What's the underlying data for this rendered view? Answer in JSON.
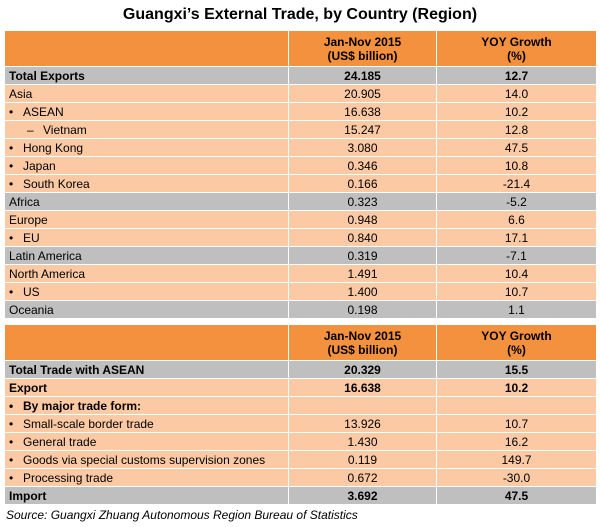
{
  "title": "Guangxi’s External Trade, by Country (Region)",
  "table1": {
    "headers": [
      "",
      "Jan-Nov 2015\n(US$ billion)",
      "YOY Growth\n(%)"
    ],
    "header_col2_l1": "Jan-Nov 2015",
    "header_col2_l2": "(US$ billion)",
    "header_col3_l1": "YOY Growth",
    "header_col3_l2": "(%)",
    "rows": [
      {
        "label": "Total Exports",
        "value": "24.185",
        "growth": "12.7"
      },
      {
        "label": "Asia",
        "value": "20.905",
        "growth": "14.0"
      },
      {
        "label": "ASEAN",
        "value": "16.638",
        "growth": "10.2"
      },
      {
        "label": "Vietnam",
        "value": "15.247",
        "growth": "12.8"
      },
      {
        "label": "Hong Kong",
        "value": "3.080",
        "growth": "47.5"
      },
      {
        "label": "Japan",
        "value": "0.346",
        "growth": "10.8"
      },
      {
        "label": "South Korea",
        "value": "0.166",
        "growth": "-21.4"
      },
      {
        "label": "Africa",
        "value": "0.323",
        "growth": "-5.2"
      },
      {
        "label": "Europe",
        "value": "0.948",
        "growth": "6.6"
      },
      {
        "label": "EU",
        "value": "0.840",
        "growth": "17.1"
      },
      {
        "label": "Latin America",
        "value": "0.319",
        "growth": "-7.1"
      },
      {
        "label": "North America",
        "value": "1.491",
        "growth": "10.4"
      },
      {
        "label": "US",
        "value": "1.400",
        "growth": "10.7"
      },
      {
        "label": "Oceania",
        "value": "0.198",
        "growth": "1.1"
      }
    ]
  },
  "table2": {
    "header_col2_l1": "Jan-Nov 2015",
    "header_col2_l2": "(US$ billion)",
    "header_col3_l1": "YOY Growth",
    "header_col3_l2": "(%)",
    "rows": [
      {
        "label": "Total Trade with ASEAN",
        "value": "20.329",
        "growth": "15.5"
      },
      {
        "label": "Export",
        "value": "16.638",
        "growth": "10.2"
      },
      {
        "label": "By major trade form:",
        "value": "",
        "growth": ""
      },
      {
        "label": "Small-scale border trade",
        "value": "13.926",
        "growth": "10.7"
      },
      {
        "label": "General trade",
        "value": "1.430",
        "growth": "16.2"
      },
      {
        "label": "Goods via special customs supervision zones",
        "value": "0.119",
        "growth": "149.7"
      },
      {
        "label": "Processing trade",
        "value": "0.672",
        "growth": "-30.0"
      },
      {
        "label": "Import",
        "value": "3.692",
        "growth": "47.5"
      }
    ]
  },
  "bullet_glyph": "•",
  "dash_glyph": "–",
  "source": "Source: Guangxi Zhuang Autonomous Region Bureau of Statistics",
  "colors": {
    "header": "#f4913f",
    "row": "#fbc9a4",
    "highlight": "#bfbfbf"
  }
}
